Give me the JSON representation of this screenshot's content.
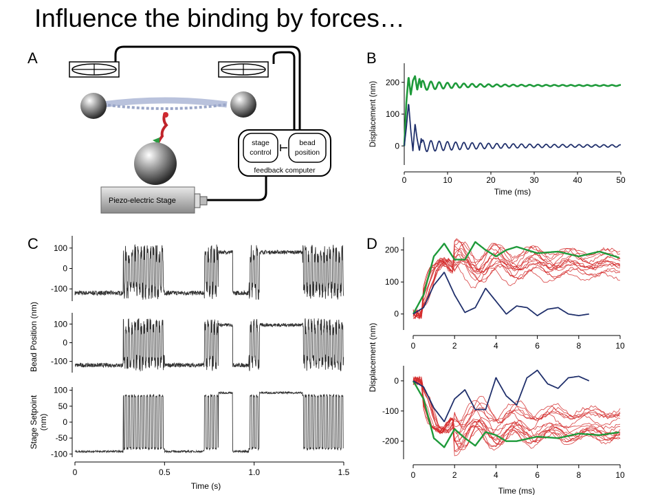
{
  "title": "Influence the binding by forces…",
  "panels": {
    "A": {
      "letter": "A",
      "stage_control": [
        "stage",
        "control"
      ],
      "bead_position": [
        "bead",
        "position"
      ],
      "feedback_label": "feedback computer",
      "stage_label": "Piezo-electric Stage"
    },
    "B": {
      "letter": "B"
    },
    "C": {
      "letter": "C"
    },
    "D": {
      "letter": "D"
    }
  },
  "colors": {
    "green": "#1e9a3a",
    "navy": "#1f2f6b",
    "red": "#d42a2a",
    "trace": "#333333"
  },
  "chart_data": [
    {
      "id": "B",
      "type": "line",
      "xlabel": "Time (ms)",
      "ylabel": "Displacement (nm)",
      "xlim": [
        0,
        50
      ],
      "ylim": [
        -60,
        260
      ],
      "xticks": [
        0,
        10,
        20,
        30,
        40,
        50
      ],
      "yticks": [
        0,
        100,
        200
      ],
      "series": [
        {
          "color": "green",
          "x": [
            0,
            0.5,
            1,
            1.5,
            2,
            2.5,
            3,
            3.5,
            4,
            5,
            6,
            8,
            10,
            15,
            20,
            25,
            30,
            40,
            50
          ],
          "y": [
            0,
            140,
            218,
            160,
            205,
            220,
            175,
            212,
            180,
            205,
            182,
            200,
            185,
            195,
            188,
            192,
            188,
            190,
            188
          ]
        },
        {
          "color": "navy",
          "x": [
            0,
            0.5,
            1,
            1.5,
            2,
            2.5,
            3,
            3.5,
            4,
            5,
            6,
            8,
            10,
            12,
            14,
            16,
            18,
            20,
            25,
            30,
            40,
            50
          ],
          "y": [
            0,
            60,
            135,
            50,
            -15,
            70,
            20,
            -15,
            30,
            -10,
            20,
            -5,
            15,
            -10,
            15,
            -12,
            12,
            -5,
            5,
            -5,
            3,
            2
          ]
        }
      ]
    },
    {
      "id": "C",
      "type": "line",
      "xlabel": "Time (s)",
      "xlim": [
        0,
        1.5
      ],
      "xticks": [
        0,
        0.5,
        1.0,
        1.5
      ],
      "panels": [
        {
          "name": "top",
          "ylim": [
            -160,
            160
          ],
          "yticks": [
            100,
            0,
            -100
          ],
          "ylabel": "Bead Position (nm)"
        },
        {
          "name": "middle",
          "ylim": [
            -160,
            160
          ],
          "yticks": [
            100,
            0,
            -100
          ],
          "ylabel": ""
        },
        {
          "name": "bottom",
          "ylim": [
            -110,
            110
          ],
          "yticks": [
            100,
            50,
            0,
            -50,
            -100
          ],
          "ylabel": "Stage Setpoint (nm)"
        }
      ],
      "segments": [
        {
          "t": [
            0,
            0.27
          ],
          "state": "low"
        },
        {
          "t": [
            0.27,
            0.5
          ],
          "state": "osc"
        },
        {
          "t": [
            0.5,
            0.72
          ],
          "state": "low"
        },
        {
          "t": [
            0.72,
            0.8
          ],
          "state": "osc"
        },
        {
          "t": [
            0.8,
            0.88
          ],
          "state": "high"
        },
        {
          "t": [
            0.88,
            0.97
          ],
          "state": "low"
        },
        {
          "t": [
            0.97,
            1.03
          ],
          "state": "osc"
        },
        {
          "t": [
            1.03,
            1.27
          ],
          "state": "high"
        },
        {
          "t": [
            1.27,
            1.5
          ],
          "state": "osc"
        }
      ]
    },
    {
      "id": "D",
      "type": "line",
      "xlabel": "Time (ms)",
      "ylabel": "Displacement (nm)",
      "xlim": [
        0,
        10
      ],
      "xticks": [
        0,
        2,
        4,
        6,
        8,
        10
      ],
      "panels": [
        {
          "name": "top",
          "ylim": [
            -50,
            240
          ],
          "yticks": [
            0,
            100,
            200
          ],
          "green": {
            "x": [
              0,
              0.5,
              1,
              1.5,
              2,
              2.5,
              3,
              3.5,
              4,
              4.5,
              5,
              6,
              7,
              8,
              9,
              10
            ],
            "y": [
              0,
              60,
              180,
              220,
              170,
              170,
              225,
              200,
              180,
              200,
              210,
              190,
              195,
              180,
              195,
              175
            ]
          },
          "navy": {
            "x": [
              0,
              0.5,
              1,
              1.5,
              2,
              2.5,
              3,
              3.5,
              4,
              4.5,
              5,
              5.5,
              6,
              6.5,
              7,
              7.5,
              8,
              8.5
            ],
            "y": [
              0,
              20,
              90,
              130,
              60,
              5,
              20,
              80,
              40,
              0,
              25,
              20,
              -5,
              15,
              20,
              0,
              -5,
              0
            ]
          },
          "red_count": 14
        },
        {
          "name": "bottom",
          "ylim": [
            -260,
            50
          ],
          "yticks": [
            0,
            -100,
            -200
          ],
          "green": {
            "x": [
              0,
              0.5,
              1,
              1.5,
              2,
              2.5,
              3,
              3.5,
              4,
              4.5,
              5,
              6,
              7,
              8,
              9,
              10
            ],
            "y": [
              0,
              -60,
              -190,
              -220,
              -160,
              -190,
              -215,
              -170,
              -180,
              -200,
              -200,
              -185,
              -190,
              -175,
              -180,
              -170
            ]
          },
          "navy": {
            "x": [
              0,
              0.5,
              1,
              1.5,
              2,
              2.5,
              3,
              3.5,
              4,
              4.5,
              5,
              5.5,
              6,
              6.5,
              7,
              7.5,
              8,
              8.5
            ],
            "y": [
              0,
              -20,
              -90,
              -135,
              -60,
              -30,
              -95,
              -95,
              10,
              -50,
              -80,
              10,
              35,
              -10,
              -25,
              10,
              15,
              0
            ]
          },
          "red_count": 16
        }
      ]
    }
  ]
}
